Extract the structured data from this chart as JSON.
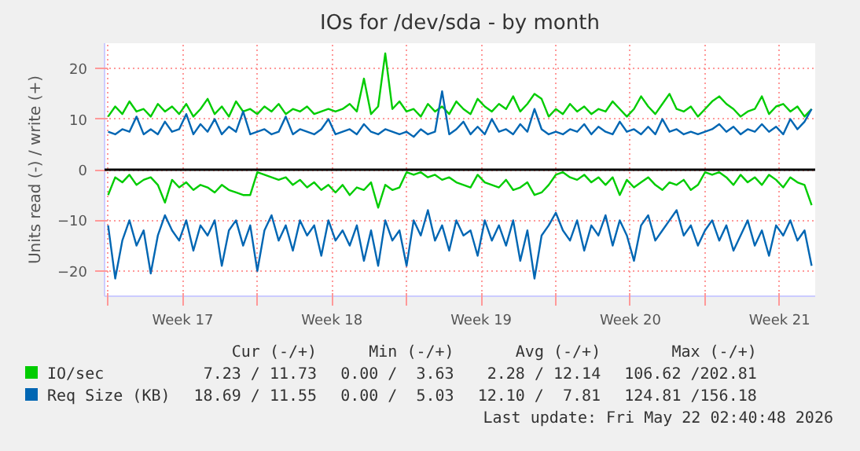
{
  "chart_data": {
    "type": "line",
    "title": "IOs for /dev/sda - by month",
    "ylabel": "Units read (-) / write (+)",
    "x": [
      "2026-04-19T00:00",
      "2026-04-19T08:00",
      "2026-04-19T16:00",
      "2026-04-20T00:00",
      "2026-04-20T08:00",
      "2026-04-20T16:00",
      "2026-04-21T00:00",
      "2026-04-21T08:00",
      "2026-04-21T16:00",
      "2026-04-22T00:00",
      "2026-04-22T08:00",
      "2026-04-22T16:00",
      "2026-04-23T00:00",
      "2026-04-23T08:00",
      "2026-04-23T16:00",
      "2026-04-24T00:00",
      "2026-04-24T08:00",
      "2026-04-24T16:00",
      "2026-04-25T00:00",
      "2026-04-25T08:00",
      "2026-04-25T16:00",
      "2026-04-26T00:00",
      "2026-04-26T08:00",
      "2026-04-26T16:00",
      "2026-04-27T00:00",
      "2026-04-27T08:00",
      "2026-04-27T16:00",
      "2026-04-28T00:00",
      "2026-04-28T08:00",
      "2026-04-28T16:00",
      "2026-04-29T00:00",
      "2026-04-29T08:00",
      "2026-04-29T16:00",
      "2026-04-30T00:00",
      "2026-04-30T08:00",
      "2026-04-30T16:00",
      "2026-05-01T00:00",
      "2026-05-01T08:00",
      "2026-05-01T16:00",
      "2026-05-02T00:00",
      "2026-05-02T08:00",
      "2026-05-02T16:00",
      "2026-05-03T00:00",
      "2026-05-03T08:00",
      "2026-05-03T16:00",
      "2026-05-04T00:00",
      "2026-05-04T08:00",
      "2026-05-04T16:00",
      "2026-05-05T00:00",
      "2026-05-05T08:00",
      "2026-05-05T16:00",
      "2026-05-06T00:00",
      "2026-05-06T08:00",
      "2026-05-06T16:00",
      "2026-05-07T00:00",
      "2026-05-07T08:00",
      "2026-05-07T16:00",
      "2026-05-08T00:00",
      "2026-05-08T08:00",
      "2026-05-08T16:00",
      "2026-05-09T00:00",
      "2026-05-09T08:00",
      "2026-05-09T16:00",
      "2026-05-10T00:00",
      "2026-05-10T08:00",
      "2026-05-10T16:00",
      "2026-05-11T00:00",
      "2026-05-11T08:00",
      "2026-05-11T16:00",
      "2026-05-12T00:00",
      "2026-05-12T08:00",
      "2026-05-12T16:00",
      "2026-05-13T00:00",
      "2026-05-13T08:00",
      "2026-05-13T16:00",
      "2026-05-14T00:00",
      "2026-05-14T08:00",
      "2026-05-14T16:00",
      "2026-05-15T00:00",
      "2026-05-15T08:00",
      "2026-05-15T16:00",
      "2026-05-16T00:00",
      "2026-05-16T08:00",
      "2026-05-16T16:00",
      "2026-05-17T00:00",
      "2026-05-17T08:00",
      "2026-05-17T16:00",
      "2026-05-18T00:00",
      "2026-05-18T08:00",
      "2026-05-18T16:00",
      "2026-05-19T00:00",
      "2026-05-19T08:00",
      "2026-05-19T16:00",
      "2026-05-20T00:00",
      "2026-05-20T08:00",
      "2026-05-20T16:00",
      "2026-05-21T00:00",
      "2026-05-21T08:00",
      "2026-05-21T16:00",
      "2026-05-22T00:00"
    ],
    "series": [
      {
        "name": "IO/sec",
        "color": "#00cc00",
        "values": [
          10.5,
          12.5,
          11,
          13.5,
          11.5,
          12,
          10.5,
          13,
          11.5,
          12.5,
          11,
          13,
          10.5,
          12,
          14,
          11,
          12.5,
          10.5,
          13.5,
          11.5,
          12,
          11,
          12.5,
          11.5,
          13,
          11,
          12,
          11.5,
          12.5,
          11,
          11.5,
          12,
          11.5,
          12,
          13,
          11.5,
          18,
          11,
          12.5,
          23,
          12,
          13.5,
          11.5,
          12,
          10.5,
          13,
          11.5,
          12.5,
          11,
          13.5,
          12,
          11,
          14,
          12.5,
          11.5,
          13,
          12,
          14.5,
          11.5,
          13,
          15,
          14,
          10.5,
          12,
          11,
          13,
          11.5,
          12.5,
          11,
          12,
          11.5,
          13.5,
          12,
          10.5,
          12,
          14.5,
          12.5,
          11,
          13,
          15,
          12,
          11.5,
          12.5,
          10.5,
          12,
          13.5,
          14.5,
          13,
          12,
          10.5,
          11.5,
          12,
          14.5,
          11,
          12.5,
          13,
          11.5,
          12.5,
          10.5,
          12
        ]
      },
      {
        "color": "#00cc00",
        "values": [
          -5,
          -1.5,
          -2.5,
          -1,
          -3,
          -2,
          -1.5,
          -3,
          -6.5,
          -2,
          -3.5,
          -2.5,
          -4,
          -3,
          -3.5,
          -4.5,
          -3,
          -4,
          -4.5,
          -5,
          -5,
          -0.5,
          -1,
          -1.5,
          -2,
          -1.5,
          -3,
          -2,
          -3.5,
          -2.5,
          -4,
          -3,
          -4.5,
          -3,
          -5,
          -3.5,
          -4,
          -2.5,
          -7.5,
          -3,
          -4,
          -3.5,
          -0.5,
          -1,
          -0.5,
          -1.5,
          -1,
          -2,
          -1.5,
          -2.5,
          -3,
          -3.5,
          -1,
          -2.5,
          -3,
          -3.5,
          -2,
          -4,
          -3.5,
          -2.5,
          -5,
          -4.5,
          -3,
          -1,
          -0.5,
          -1.5,
          -2,
          -1,
          -2.5,
          -1.5,
          -3,
          -1.5,
          -5,
          -2,
          -3.5,
          -2.5,
          -1.5,
          -3,
          -4,
          -2.5,
          -3,
          -2,
          -4,
          -3,
          -0.5,
          -1,
          -0.5,
          -1.5,
          -3,
          -1,
          -2.5,
          -1.5,
          -3,
          -1,
          -2,
          -3.5,
          -1.5,
          -2.5,
          -3,
          -7
        ]
      },
      {
        "name": "Req Size (KB)",
        "color": "#0066b3",
        "values": [
          7.5,
          7,
          8,
          7.5,
          10.5,
          7,
          8,
          7,
          9.5,
          7.5,
          8,
          11,
          7,
          9,
          7.5,
          10,
          7,
          8.5,
          7.5,
          11.5,
          7,
          7.5,
          8,
          7,
          7.5,
          10.5,
          7,
          8,
          7.5,
          7,
          8,
          10,
          7,
          7.5,
          8,
          7,
          9,
          7.5,
          7,
          8,
          7.5,
          7,
          7.5,
          6.5,
          8,
          7,
          7.5,
          15.5,
          7,
          8,
          9.5,
          7,
          8.5,
          7,
          10,
          7.5,
          8,
          7,
          9,
          7.5,
          12,
          8,
          7,
          7.5,
          7,
          8,
          7.5,
          9,
          7,
          8.5,
          7.5,
          7,
          9.5,
          7.5,
          8,
          7,
          8.5,
          7,
          10,
          7.5,
          8,
          7,
          7.5,
          7,
          7.5,
          8,
          9,
          7.5,
          8.5,
          7,
          8,
          7.5,
          9,
          7.5,
          8.5,
          7,
          10,
          8,
          9.5,
          12
        ]
      },
      {
        "color": "#0066b3",
        "values": [
          -11,
          -21.5,
          -14,
          -10,
          -15,
          -12,
          -20.5,
          -13,
          -9,
          -12,
          -14,
          -10,
          -16,
          -11,
          -13,
          -10,
          -19,
          -12,
          -10,
          -15,
          -11,
          -20,
          -12,
          -9,
          -14,
          -11,
          -16,
          -10,
          -13,
          -11,
          -17,
          -10,
          -14,
          -12,
          -15,
          -11,
          -18,
          -12,
          -19,
          -10,
          -14,
          -12,
          -19,
          -10,
          -13,
          -8,
          -14,
          -11,
          -16,
          -10,
          -13,
          -12,
          -17,
          -10,
          -14,
          -11,
          -15,
          -10,
          -18,
          -12,
          -21.5,
          -13,
          -11,
          -8.5,
          -12,
          -14,
          -10,
          -16,
          -11,
          -13,
          -9,
          -15,
          -10,
          -13,
          -18,
          -11,
          -9,
          -14,
          -12,
          -10,
          -8,
          -13,
          -11,
          -15,
          -12,
          -10,
          -14,
          -11,
          -16,
          -13,
          -10,
          -15,
          -12,
          -17,
          -11,
          -13,
          -10,
          -14,
          -12,
          -19
        ]
      }
    ],
    "xlim": [
      "2026-04-18T20:00",
      "2026-05-22T04:00"
    ],
    "xticks": [
      {
        "value": "2026-04-19T00:00",
        "label": null
      },
      {
        "value": "2026-04-22T12:00",
        "label": "Week 17"
      },
      {
        "value": "2026-04-26T00:00",
        "label": null
      },
      {
        "value": "2026-04-29T12:00",
        "label": "Week 18"
      },
      {
        "value": "2026-05-03T00:00",
        "label": null
      },
      {
        "value": "2026-05-06T12:00",
        "label": "Week 19"
      },
      {
        "value": "2026-05-10T00:00",
        "label": null
      },
      {
        "value": "2026-05-13T12:00",
        "label": "Week 20"
      },
      {
        "value": "2026-05-17T00:00",
        "label": null
      },
      {
        "value": "2026-05-20T12:00",
        "label": "Week 21"
      }
    ],
    "ylim": [
      -25,
      25
    ],
    "yticks": [
      -20,
      -10,
      0,
      10,
      20
    ],
    "ref_lines": [
      {
        "axis": "y",
        "value": 0,
        "color": "#000000"
      }
    ],
    "grid": true,
    "legend": "bottom",
    "line_style": "solid",
    "annotations": [
      "Cur (-/+)",
      "Min (-/+)",
      "Avg (-/+)",
      "Max (-/+)",
      "7.23 / 11.73",
      "0.00 /  3.63",
      "2.28 / 12.14",
      "106.62 /202.81",
      "18.69 / 11.55",
      "0.00 /  5.03",
      "12.10 /  7.81",
      "124.81 /156.18",
      "Last update: Fri May 22 02:40:48 2026"
    ]
  }
}
